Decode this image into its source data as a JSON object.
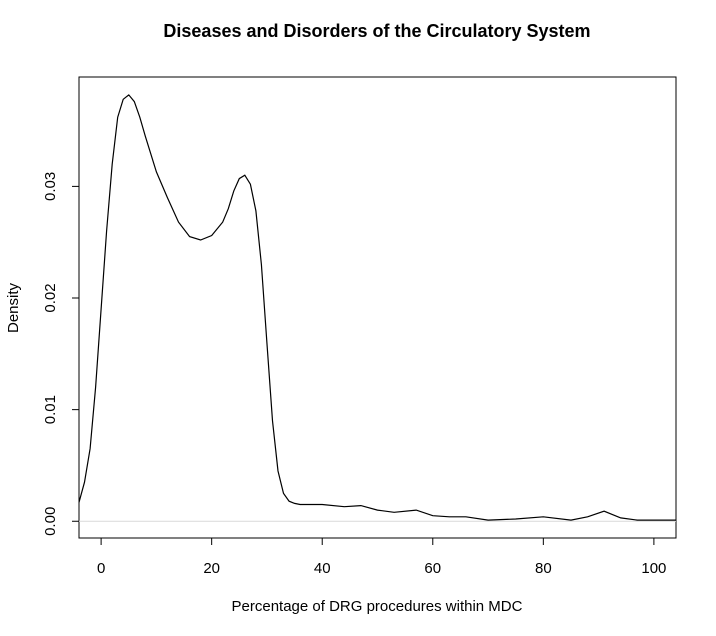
{
  "chart_data": {
    "type": "line",
    "title": "Diseases and Disorders of the Circulatory System",
    "xlabel": "Percentage of DRG procedures within MDC",
    "ylabel": "Density",
    "xlim": [
      -4,
      104
    ],
    "ylim": [
      -0.0015,
      0.0398
    ],
    "x_ticks": [
      0,
      20,
      40,
      60,
      80,
      100
    ],
    "x_tick_labels": [
      "0",
      "20",
      "40",
      "60",
      "80",
      "100"
    ],
    "y_ticks": [
      0,
      0.01,
      0.02,
      0.03
    ],
    "y_tick_labels": [
      "0.00",
      "0.01",
      "0.02",
      "0.03"
    ],
    "zero_baseline": true,
    "grid": false,
    "legend": "none",
    "line_color": "#000000",
    "series": [
      {
        "x": [
          -4,
          -3,
          -2,
          -1,
          0,
          1,
          2,
          3,
          4,
          5,
          6,
          7,
          8,
          10,
          12,
          14,
          16,
          18,
          20,
          22,
          23,
          24,
          25,
          26,
          27,
          28,
          29,
          30,
          31,
          32,
          33,
          34,
          35,
          36,
          38,
          40,
          44,
          47,
          50,
          53,
          57,
          60,
          63,
          66,
          70,
          75,
          80,
          85,
          88,
          91,
          94,
          97,
          100,
          104
        ],
        "y": [
          0.0017,
          0.0035,
          0.0065,
          0.012,
          0.019,
          0.026,
          0.032,
          0.0362,
          0.0378,
          0.0382,
          0.0376,
          0.0362,
          0.0345,
          0.0313,
          0.029,
          0.0268,
          0.0255,
          0.0252,
          0.0256,
          0.0268,
          0.028,
          0.0296,
          0.0307,
          0.031,
          0.0302,
          0.0278,
          0.023,
          0.016,
          0.009,
          0.0045,
          0.0025,
          0.0018,
          0.0016,
          0.0015,
          0.0015,
          0.0015,
          0.0013,
          0.0014,
          0.001,
          0.0008,
          0.001,
          0.0005,
          0.0004,
          0.0004,
          0.0001,
          0.0002,
          0.0004,
          0.0001,
          0.0004,
          0.0009,
          0.0003,
          0.0001,
          0.0001,
          0.0001
        ]
      }
    ]
  }
}
